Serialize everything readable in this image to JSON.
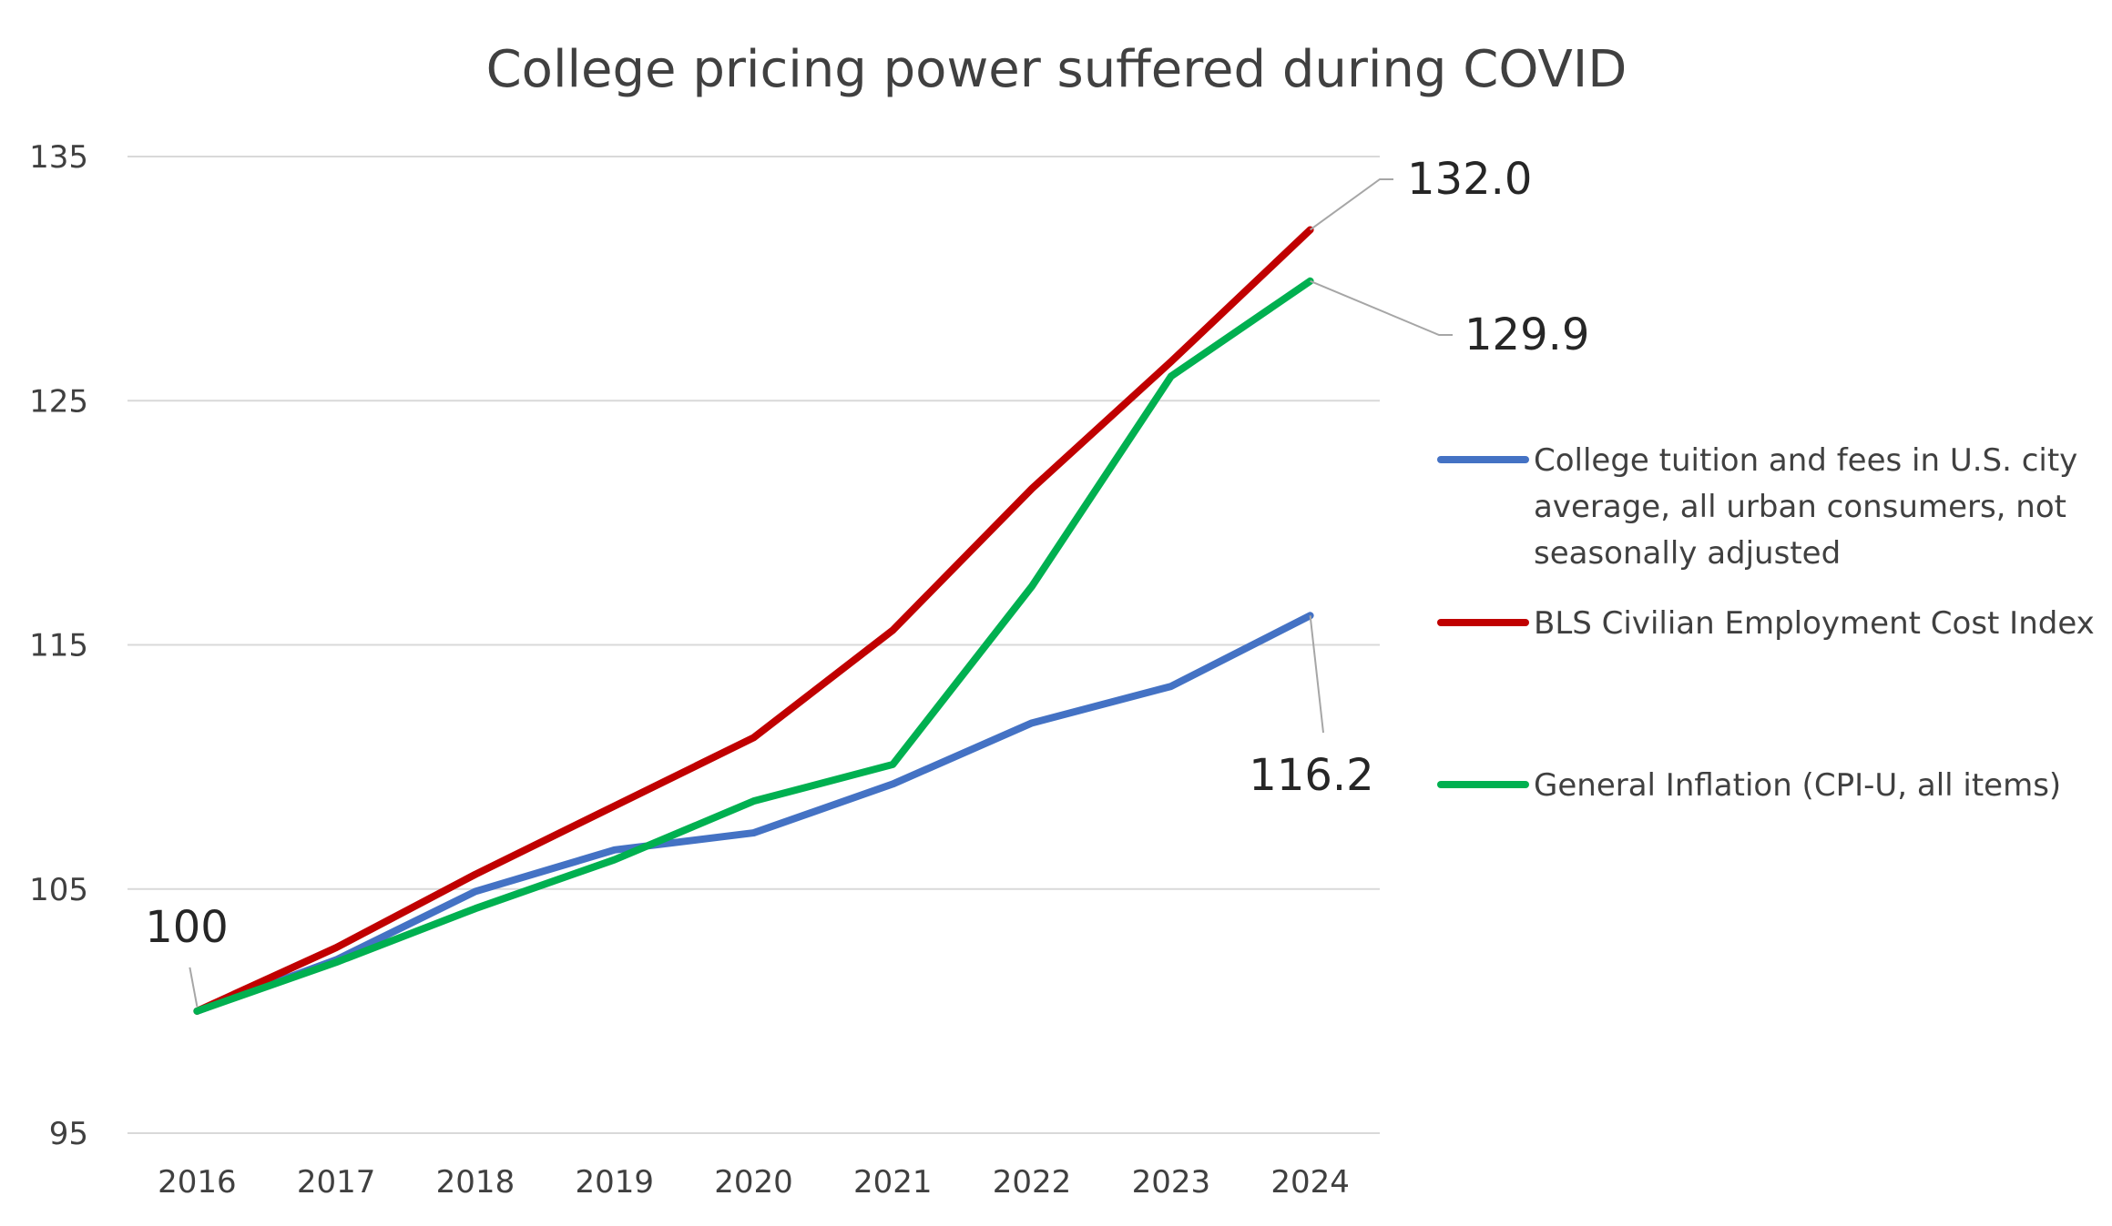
{
  "chart_data": {
    "type": "line",
    "title": "College pricing power suffered during COVID",
    "xlabel": "",
    "ylabel": "",
    "categories": [
      "2016",
      "2017",
      "2018",
      "2019",
      "2020",
      "2021",
      "2022",
      "2023",
      "2024"
    ],
    "ylim": [
      95,
      135
    ],
    "yticks": [
      95,
      105,
      115,
      125,
      135
    ],
    "grid": true,
    "legend_position": "right",
    "series": [
      {
        "name": "College tuition and fees in U.S. city average, all urban consumers, not seasonally adjusted",
        "legend_lines": [
          "College tuition and fees in U.S. city",
          "average, all urban consumers, not",
          "seasonally adjusted"
        ],
        "color": "#4472C4",
        "values": [
          100,
          102.1,
          104.9,
          106.6,
          107.3,
          109.3,
          111.8,
          113.3,
          116.2
        ],
        "end_label": "116.2"
      },
      {
        "name": "BLS Civilian Employment Cost Index",
        "legend_lines": [
          "BLS Civilian Employment Cost Index"
        ],
        "color": "#C00000",
        "values": [
          100,
          102.6,
          105.6,
          108.4,
          111.2,
          115.6,
          121.4,
          126.6,
          132.0
        ],
        "end_label": "132.0"
      },
      {
        "name": "General Inflation (CPI-U, all items)",
        "legend_lines": [
          "General Inflation (CPI-U, all items)"
        ],
        "color": "#00B050",
        "values": [
          100,
          102.0,
          104.2,
          106.2,
          108.6,
          110.1,
          117.4,
          126.0,
          129.9
        ],
        "end_label": "129.9"
      }
    ],
    "start_label": "100"
  }
}
